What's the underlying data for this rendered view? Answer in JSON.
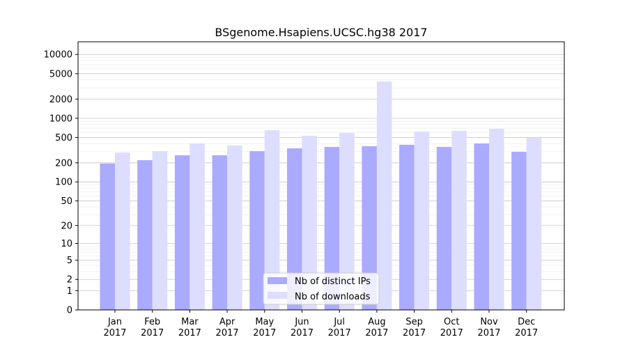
{
  "chart_data": {
    "type": "bar",
    "title": "BSgenome.Hsapiens.UCSC.hg38 2017",
    "xlabel": "",
    "ylabel": "",
    "yscale": "log(1+y)",
    "ylim": [
      0,
      15000
    ],
    "yticks": [
      0,
      1,
      2,
      5,
      10,
      20,
      50,
      100,
      200,
      500,
      1000,
      2000,
      5000,
      10000
    ],
    "categories": [
      "Jan\n2017",
      "Feb\n2017",
      "Mar\n2017",
      "Apr\n2017",
      "May\n2017",
      "Jun\n2017",
      "Jul\n2017",
      "Aug\n2017",
      "Sep\n2017",
      "Oct\n2017",
      "Nov\n2017",
      "Dec\n2017"
    ],
    "series": [
      {
        "name": "Nb of distinct IPs",
        "color": "#aaaaff",
        "values": [
          195,
          220,
          263,
          263,
          305,
          338,
          356,
          365,
          384,
          356,
          403,
          298
        ]
      },
      {
        "name": "Nb of downloads",
        "color": "#ddddff",
        "values": [
          290,
          305,
          403,
          374,
          650,
          532,
          590,
          3776,
          620,
          635,
          685,
          494
        ]
      }
    ],
    "legend": "lower-center",
    "grid": true
  }
}
